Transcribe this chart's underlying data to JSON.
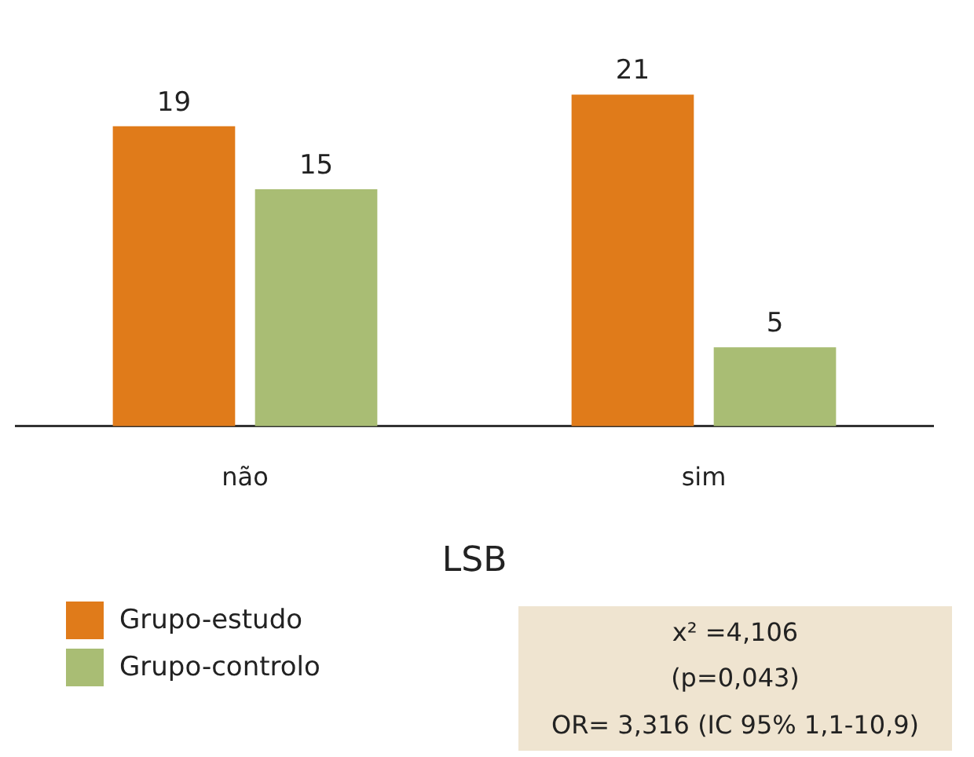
{
  "chart_data": {
    "type": "bar",
    "xlabel": "LSB",
    "categories": [
      "não",
      "sim"
    ],
    "series": [
      {
        "name": "Grupo-estudo",
        "color": "#e07b1a",
        "values": [
          19,
          21
        ]
      },
      {
        "name": "Grupo-controlo",
        "color": "#a9bd74",
        "values": [
          15,
          5
        ]
      }
    ],
    "data_labels": true,
    "legend": "bottom left",
    "grid": false,
    "annotations": [
      "x² =4,106",
      "(p=0,043)",
      "OR= 3,316 (IC 95% 1,1-10,9)"
    ]
  }
}
